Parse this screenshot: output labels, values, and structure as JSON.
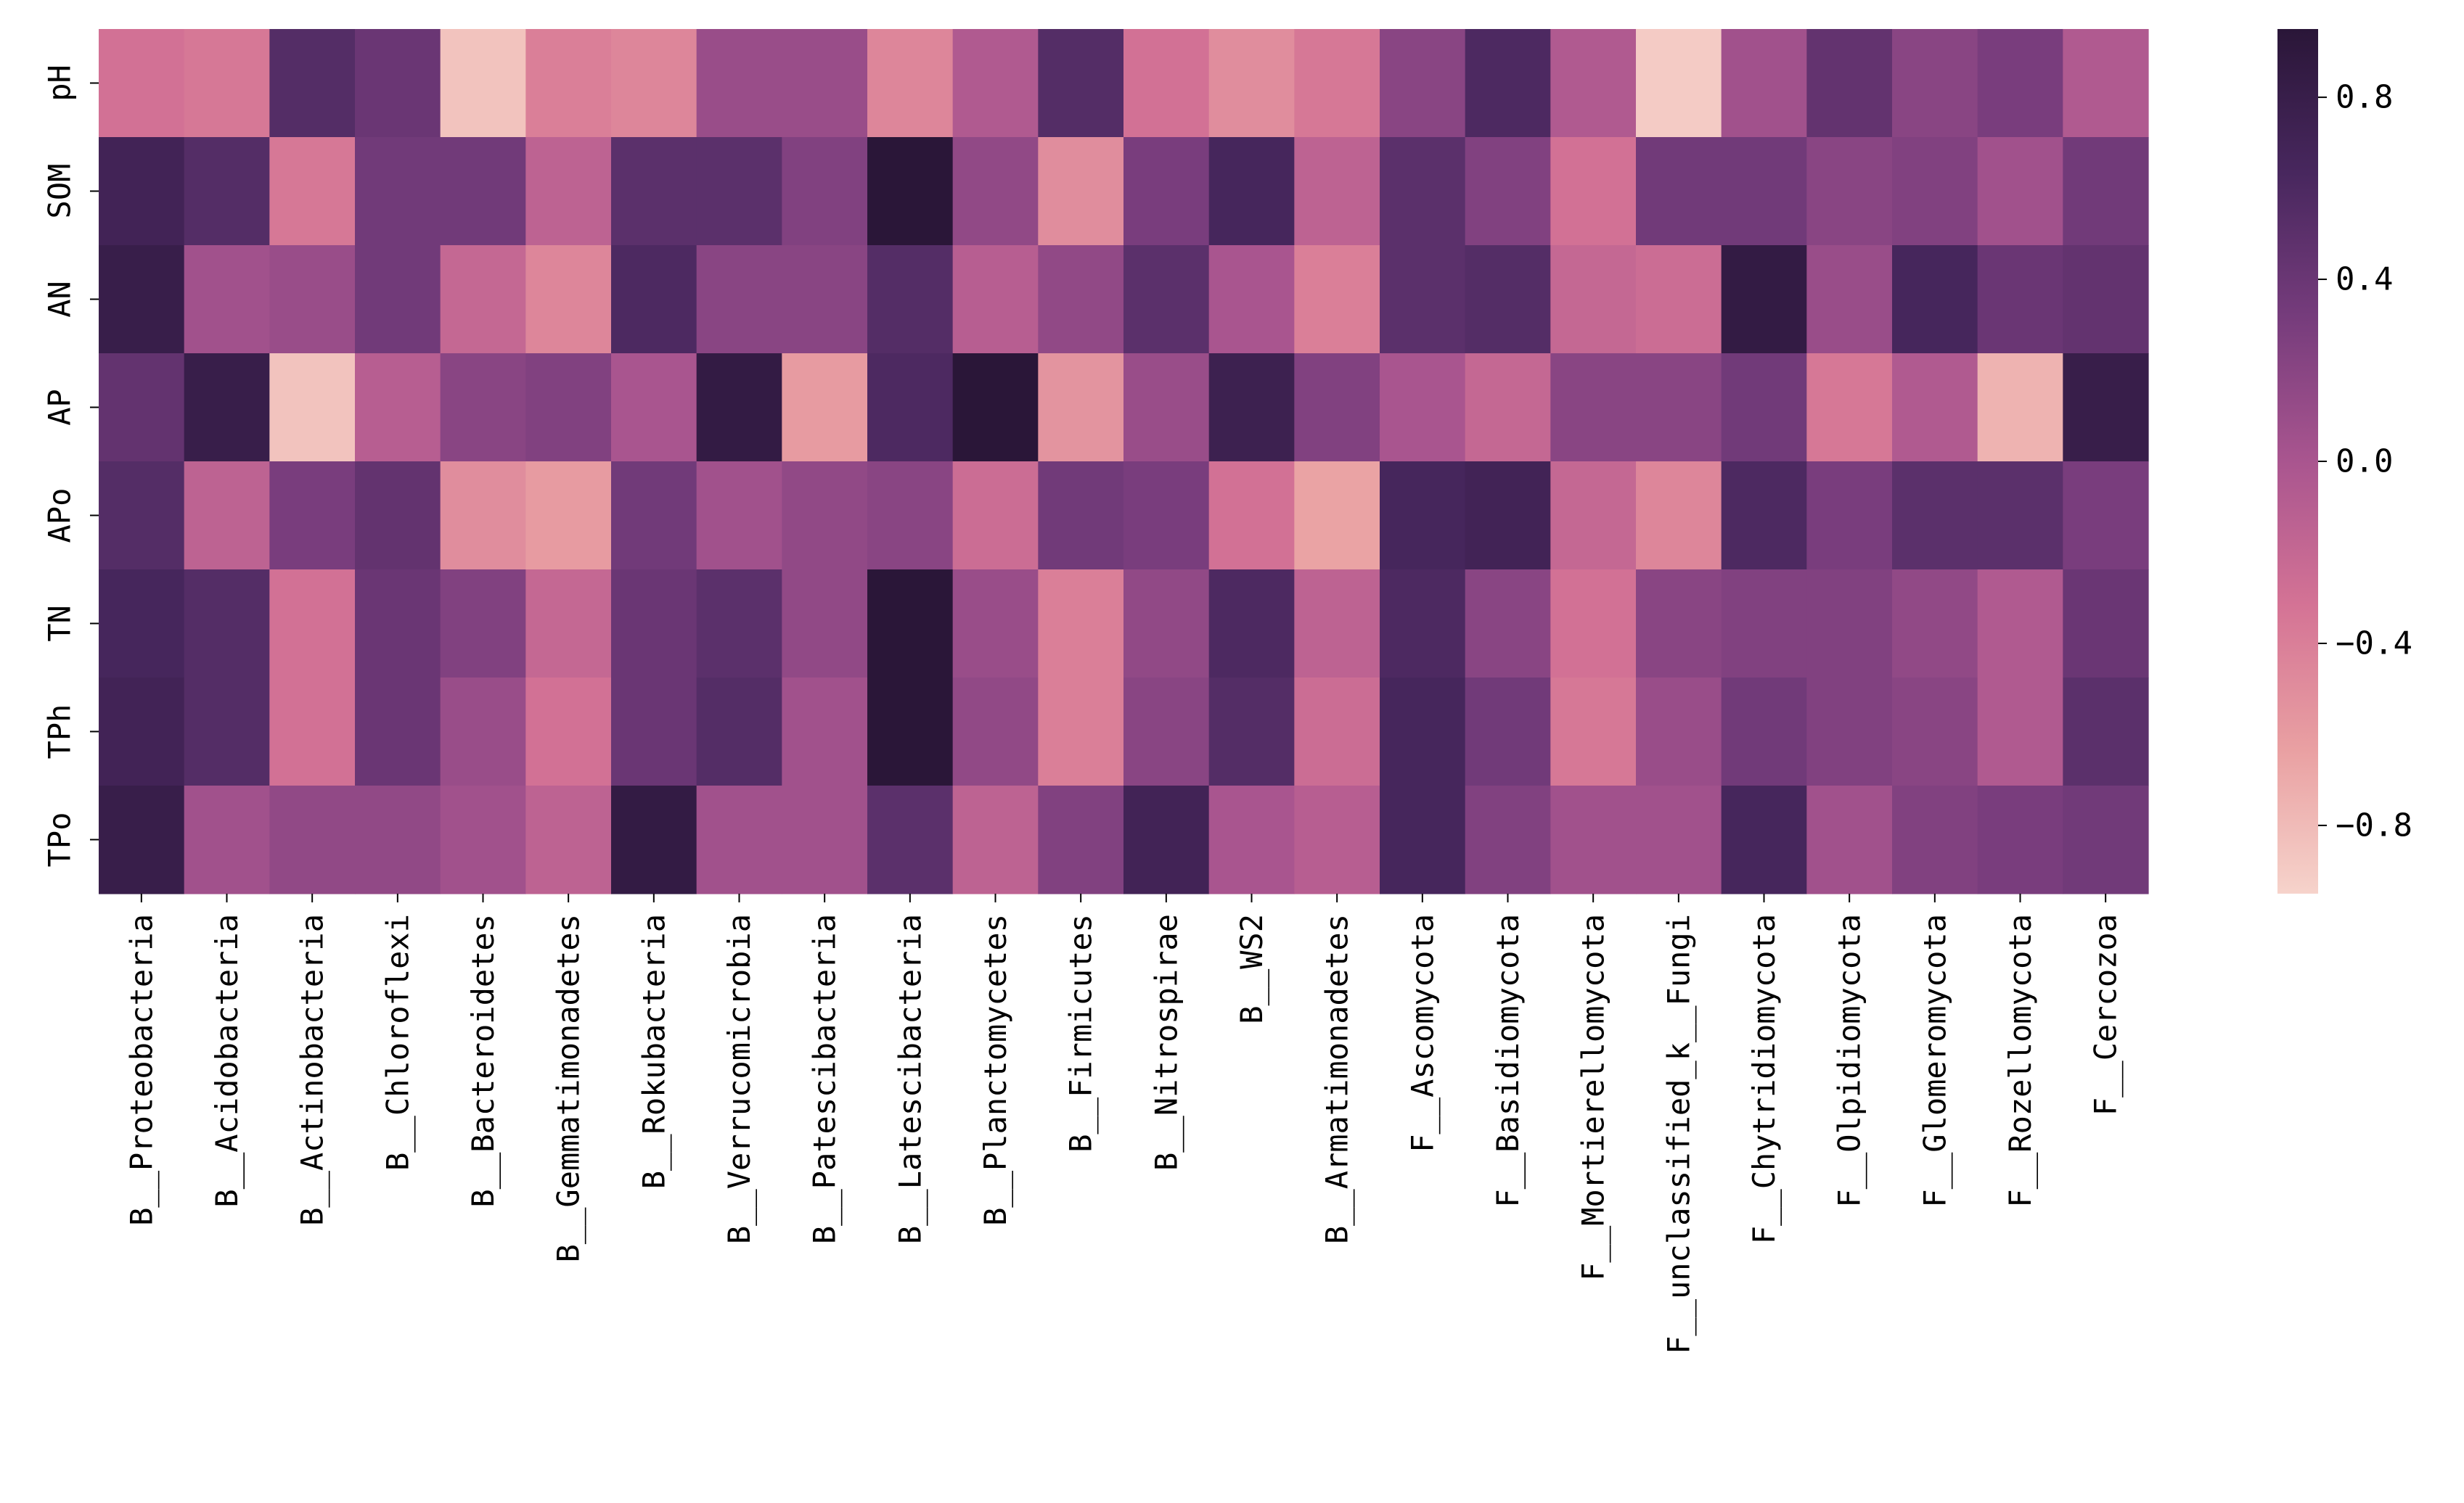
{
  "chart_data": {
    "type": "heatmap",
    "title": "",
    "xlabel": "",
    "ylabel": "",
    "rows": [
      "pH",
      "SOM",
      "AN",
      "AP",
      "APo",
      "TN",
      "TPh",
      "TPo"
    ],
    "columns": [
      "B__Proteobacteria",
      "B__Acidobacteria",
      "B__Actinobacteria",
      "B__Chloroflexi",
      "B__Bacteroidetes",
      "B__Gemmatimonadetes",
      "B__Rokubacteria",
      "B__Verrucomicrobia",
      "B__Patescibacteria",
      "B__Latescibacteria",
      "B__Planctomycetes",
      "B__Firmicutes",
      "B__Nitrospirae",
      "B__WS2",
      "B__Armatimonadetes",
      "F__Ascomycota",
      "F__Basidiomycota",
      "F__Mortierellomycota",
      "F__unclassified_k__Fungi",
      "F__Chytridiomycota",
      "F__Olpidiomycota",
      "F__Glomeromycota",
      "F__Rozellomycota",
      "F__Cercozoa"
    ],
    "values": [
      [
        -0.3,
        -0.35,
        0.55,
        0.4,
        -0.85,
        -0.4,
        -0.45,
        0.1,
        0.1,
        -0.45,
        -0.05,
        0.55,
        -0.3,
        -0.5,
        -0.35,
        0.2,
        0.6,
        -0.05,
        -0.9,
        0.05,
        0.45,
        0.2,
        0.3,
        -0.05
      ],
      [
        0.7,
        0.55,
        -0.35,
        0.35,
        0.35,
        -0.15,
        0.5,
        0.5,
        0.25,
        0.95,
        0.15,
        -0.5,
        0.3,
        0.65,
        -0.15,
        0.5,
        0.25,
        -0.3,
        0.35,
        0.35,
        0.2,
        0.25,
        0.05,
        0.35
      ],
      [
        0.8,
        0.05,
        0.1,
        0.35,
        -0.2,
        -0.45,
        0.6,
        0.2,
        0.2,
        0.55,
        -0.1,
        0.15,
        0.5,
        0.0,
        -0.4,
        0.5,
        0.55,
        -0.2,
        -0.25,
        0.85,
        0.1,
        0.65,
        0.4,
        0.45
      ],
      [
        0.45,
        0.8,
        -0.85,
        -0.1,
        0.2,
        0.25,
        0.0,
        0.85,
        -0.6,
        0.6,
        0.95,
        -0.55,
        0.1,
        0.75,
        0.25,
        0.0,
        -0.2,
        0.2,
        0.2,
        0.35,
        -0.35,
        -0.05,
        -0.75,
        0.8
      ],
      [
        0.55,
        -0.15,
        0.3,
        0.45,
        -0.5,
        -0.6,
        0.35,
        0.05,
        0.15,
        0.2,
        -0.25,
        0.35,
        0.3,
        -0.3,
        -0.65,
        0.65,
        0.7,
        -0.2,
        -0.45,
        0.6,
        0.3,
        0.5,
        0.5,
        0.3
      ],
      [
        0.65,
        0.55,
        -0.3,
        0.4,
        0.25,
        -0.2,
        0.4,
        0.5,
        0.15,
        0.95,
        0.1,
        -0.4,
        0.15,
        0.6,
        -0.15,
        0.6,
        0.2,
        -0.3,
        0.2,
        0.25,
        0.25,
        0.15,
        -0.05,
        0.4
      ],
      [
        0.7,
        0.55,
        -0.3,
        0.4,
        0.1,
        -0.3,
        0.4,
        0.55,
        0.05,
        0.95,
        0.15,
        -0.4,
        0.2,
        0.55,
        -0.25,
        0.65,
        0.35,
        -0.35,
        0.1,
        0.35,
        0.25,
        0.2,
        -0.05,
        0.5
      ],
      [
        0.8,
        0.05,
        0.15,
        0.15,
        0.05,
        -0.15,
        0.85,
        0.05,
        0.05,
        0.5,
        -0.15,
        0.25,
        0.7,
        0.0,
        -0.1,
        0.65,
        0.25,
        0.05,
        0.05,
        0.65,
        0.05,
        0.25,
        0.3,
        0.35
      ]
    ],
    "vmin": -0.95,
    "vmax": 0.95,
    "colorbar_ticks": [
      0.8,
      0.4,
      0.0,
      -0.4,
      -0.8
    ],
    "colorbar_tick_labels": [
      "0.8",
      "0.4",
      "0.0",
      "−0.4",
      "−0.8"
    ],
    "colormap": [
      "#f6d3cb",
      "#e9a0a2",
      "#d47395",
      "#a9558f",
      "#763c7c",
      "#48275e",
      "#2a1638"
    ],
    "grid": false
  }
}
